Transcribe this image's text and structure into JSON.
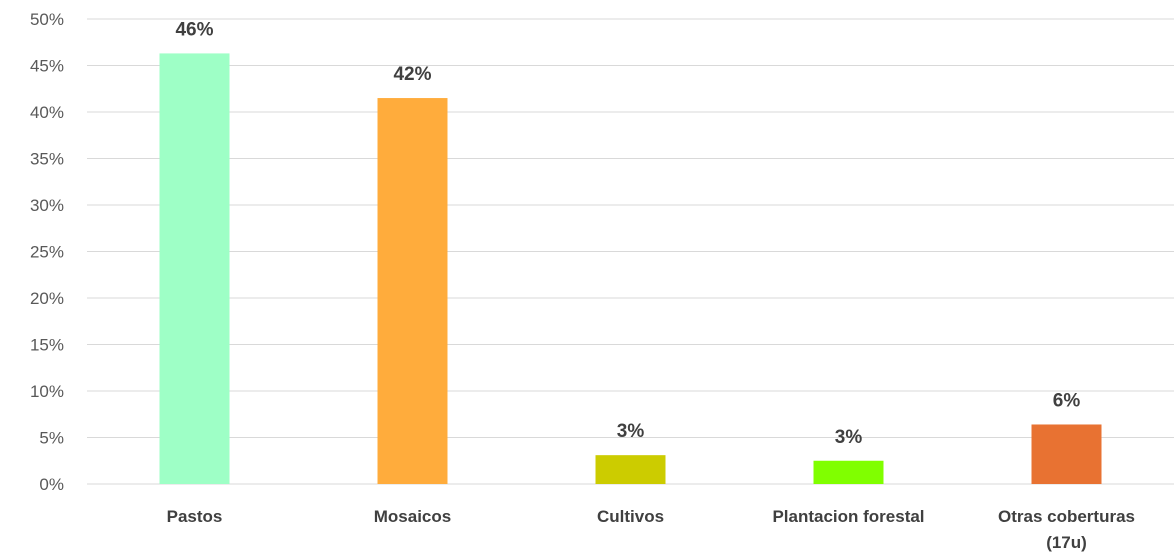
{
  "chart_data": {
    "type": "bar",
    "categories": [
      "Pastos",
      "Mosaicos",
      "Cultivos",
      "Plantacion forestal",
      "Otras coberturas (17u)"
    ],
    "category_lines": [
      [
        "Pastos"
      ],
      [
        "Mosaicos"
      ],
      [
        "Cultivos"
      ],
      [
        "Plantacion forestal"
      ],
      [
        "Otras coberturas",
        "(17u)"
      ]
    ],
    "values": [
      0.463,
      0.415,
      0.031,
      0.025,
      0.064
    ],
    "data_labels": [
      "46%",
      "42%",
      "3%",
      "3%",
      "6%"
    ],
    "colors": [
      "#9effc6",
      "#ffac3c",
      "#cccc00",
      "#80ff00",
      "#e87232"
    ],
    "yticks": [
      "0%",
      "5%",
      "10%",
      "15%",
      "20%",
      "25%",
      "30%",
      "35%",
      "40%",
      "45%",
      "50%"
    ],
    "ylim": [
      0,
      0.5
    ],
    "grid": true,
    "title": "",
    "xlabel": "",
    "ylabel": ""
  }
}
